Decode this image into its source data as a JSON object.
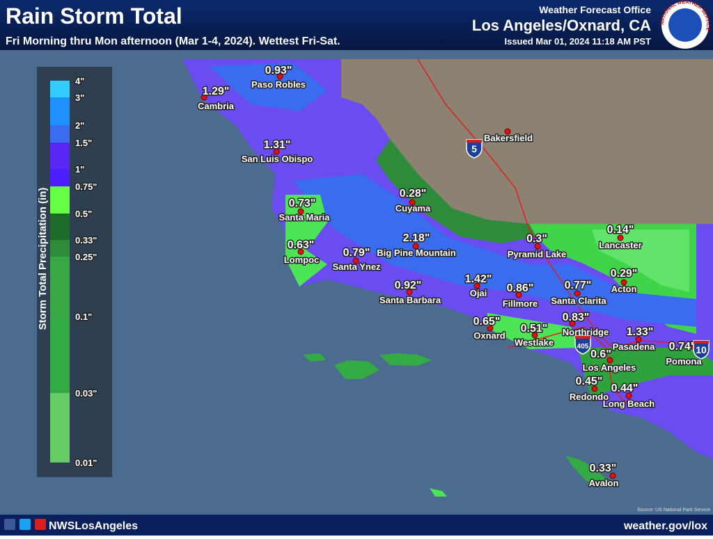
{
  "header": {
    "title": "Rain Storm Total",
    "subtitle": "Fri Morning thru Mon afternoon (Mar 1-4, 2024). Wettest Fri-Sat.",
    "office_label": "Weather Forecast Office",
    "office": "Los Angeles/Oxnard, CA",
    "issued": "Issued Mar 01, 2024 11:18 AM PST",
    "logo_text": "NATIONAL WEATHER SERVICE"
  },
  "legend": {
    "title": "Storm Total Precipitation (in)",
    "labels": [
      "4\"",
      "3\"",
      "2\"",
      "1.5\"",
      "1\"",
      "0.75\"",
      "0.5\"",
      "0.33\"",
      "0.25\"",
      "0.1\"",
      "0.03\"",
      "0.01\""
    ]
  },
  "cities": [
    {
      "name": "Paso Robles",
      "amount": "0.93\""
    },
    {
      "name": "Cambria",
      "amount": "1.29\""
    },
    {
      "name": "San Luis Obispo",
      "amount": "1.31\""
    },
    {
      "name": "Santa Maria",
      "amount": "0.73\""
    },
    {
      "name": "Lompoc",
      "amount": "0.63\""
    },
    {
      "name": "Santa Ynez",
      "amount": "0.79\""
    },
    {
      "name": "Big Pine Mountain",
      "amount": "2.18\""
    },
    {
      "name": "Cuyama",
      "amount": "0.28\""
    },
    {
      "name": "Santa Barbara",
      "amount": "0.92\""
    },
    {
      "name": "Ojai",
      "amount": "1.42\""
    },
    {
      "name": "Fillmore",
      "amount": "0.86\""
    },
    {
      "name": "Santa Clarita",
      "amount": "0.77\""
    },
    {
      "name": "Pyramid Lake",
      "amount": "0.3\""
    },
    {
      "name": "Lancaster",
      "amount": "0.14\""
    },
    {
      "name": "Acton",
      "amount": "0.29\""
    },
    {
      "name": "Northridge",
      "amount": "0.83\""
    },
    {
      "name": "Oxnard",
      "amount": "0.65\""
    },
    {
      "name": "Westlake",
      "amount": "0.51\""
    },
    {
      "name": "Pasadena",
      "amount": "1.33\""
    },
    {
      "name": "Pomona",
      "amount": "0.74\""
    },
    {
      "name": "Los Angeles",
      "amount": "0.6\""
    },
    {
      "name": "Redondo",
      "amount": "0.45\""
    },
    {
      "name": "Long Beach",
      "amount": "0.44\""
    },
    {
      "name": "Avalon",
      "amount": "0.33\""
    },
    {
      "name": "Bakersfield"
    }
  ],
  "highways": [
    "5",
    "405",
    "10"
  ],
  "source": "Source: US National Park Service",
  "footer": {
    "handle": "NWSLosAngeles",
    "website": "weather.gov/lox"
  }
}
